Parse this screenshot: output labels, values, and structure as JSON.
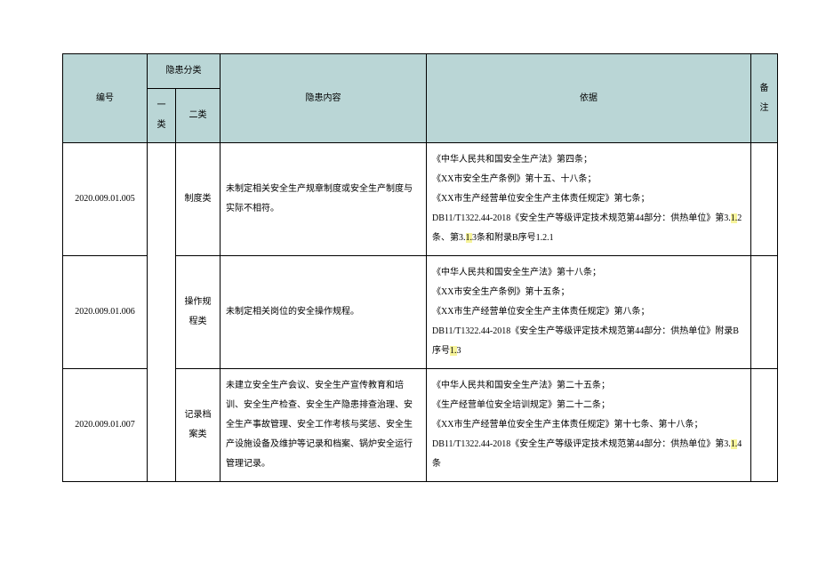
{
  "header": {
    "id": "编号",
    "catGroup": "隐患分类",
    "cat1": "一类",
    "cat2": "二类",
    "content": "隐患内容",
    "basis": "依据",
    "note": "备注"
  },
  "rows": [
    {
      "id": "2020.009.01.005",
      "cat2": "制度类",
      "content": "未制定相关安全生产规章制度或安全生产制度与实际不相符。",
      "basisHtml": "《中华人民共和国安全生产法》第四条；<br>《XX市安全生产条例》第十五、十八条；<br>《XX市生产经营单位安全生产主体责任规定》第七条；<br>DB11/T1322.44-2018《安全生产等级评定技术规范第44部分：供热单位》第3.<mark>1.</mark>2条、第3.<mark>1.</mark>3条和附录B序号1.2.1"
    },
    {
      "id": "2020.009.01.006",
      "cat2": "操作规程类",
      "content": "未制定相关岗位的安全操作规程。",
      "basisHtml": "《中华人民共和国安全生产法》第十八条；<br>《XX市安全生产条例》第十五条；<br>《XX市生产经营单位安全生产主体责任规定》第八条；<br>DB11/T1322.44-2018《安全生产等级评定技术规范第44部分：供热单位》附录B序号<mark>1.</mark>3"
    },
    {
      "id": "2020.009.01.007",
      "cat2": "记录档案类",
      "content": "未建立安全生产会议、安全生产宣传教育和培训、安全生产检查、安全生产隐患排查治理、安全生产事故管理、安全工作考核与奖惩、安全生产设施设备及维护等记录和档案、锅炉安全运行管理记录。",
      "basisHtml": "《中华人民共和国安全生产法》第二十五条；<br>《生产经营单位安全培训规定》第二十二条；<br>《XX市生产经营单位安全生产主体责任规定》第十七条、第十八条；<br>DB11/T1322.44-2018《安全生产等级评定技术规范第44部分：供热单位》第3.<mark>1.</mark>4条"
    }
  ]
}
